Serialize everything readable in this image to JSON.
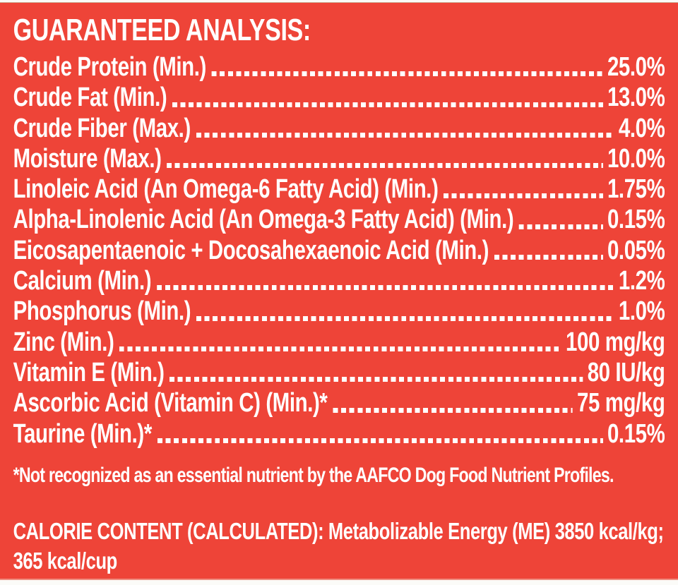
{
  "label": {
    "heading": "GUARANTEED ANALYSIS:",
    "rows": [
      {
        "name": "Crude Protein (Min.)",
        "value": "25.0%"
      },
      {
        "name": "Crude Fat (Min.)",
        "value": "13.0%"
      },
      {
        "name": "Crude Fiber (Max.)",
        "value": "4.0%"
      },
      {
        "name": "Moisture (Max.)",
        "value": "10.0%"
      },
      {
        "name": "Linoleic Acid (An Omega-6 Fatty Acid) (Min.)",
        "value": "1.75%"
      },
      {
        "name": "Alpha-Linolenic Acid (An Omega-3 Fatty Acid) (Min.)",
        "value": "0.15%"
      },
      {
        "name": "Eicosapentaenoic + Docosahexaenoic Acid (Min.)",
        "value": "0.05%"
      },
      {
        "name": "Calcium (Min.)",
        "value": "1.2%"
      },
      {
        "name": "Phosphorus (Min.)",
        "value": "1.0%"
      },
      {
        "name": "Zinc (Min.)",
        "value": "100 mg/kg"
      },
      {
        "name": "Vitamin E (Min.)",
        "value": "80 IU/kg"
      },
      {
        "name": "Ascorbic Acid (Vitamin C) (Min.)*",
        "value": "75 mg/kg"
      },
      {
        "name": "Taurine (Min.)*",
        "value": "0.15%"
      }
    ],
    "footnote": "*Not recognized as an essential nutrient by the AAFCO Dog Food Nutrient Profiles.",
    "calorie_content": {
      "line1": "CALORIE CONTENT (CALCULATED): Metabolizable Energy (ME) 3850 kcal/kg;",
      "line2": "365 kcal/cup"
    },
    "colors": {
      "background": "#EE4438",
      "text": "#FFFFFF"
    }
  }
}
